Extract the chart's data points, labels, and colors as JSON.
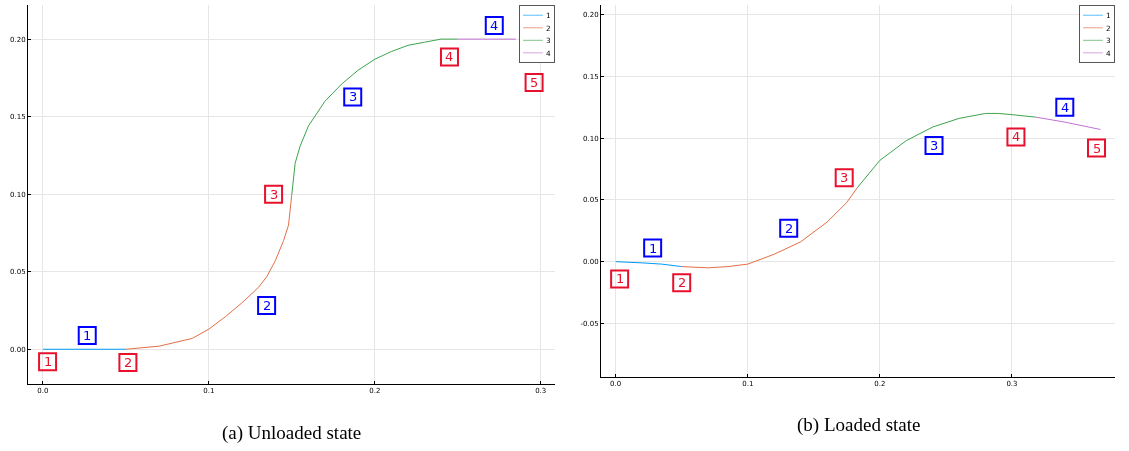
{
  "chart_data": [
    {
      "type": "line",
      "annotations": [
        "(a) Unloaded state",
        {
          "text": "1",
          "x": 0.0028,
          "y": -0.008
        },
        {
          "text": "2",
          "x": 0.0512,
          "y": -0.0085
        },
        {
          "text": "3",
          "x": 0.139,
          "y": 0.1
        },
        {
          "text": "4",
          "x": 0.245,
          "y": 0.1885
        },
        {
          "text": "5",
          "x": 0.296,
          "y": 0.172
        },
        {
          "text": "1",
          "x": 0.0267,
          "y": 0.0088
        },
        {
          "text": "2",
          "x": 0.1348,
          "y": 0.0283
        },
        {
          "text": "3",
          "x": 0.1867,
          "y": 0.1627
        },
        {
          "text": "4",
          "x": 0.272,
          "y": 0.2088
        }
      ],
      "xlim": [
        -0.009,
        0.3086
      ],
      "ylim": [
        -0.0224,
        0.222
      ],
      "xticks": [
        {
          "value": 0,
          "label": "0.0"
        },
        {
          "value": 0.1,
          "label": "0.1"
        },
        {
          "value": 0.2,
          "label": "0.2"
        },
        {
          "value": 0.3,
          "label": "0.3"
        }
      ],
      "yticks": [
        {
          "value": 0,
          "label": "0.00"
        },
        {
          "value": 0.05,
          "label": "0.05"
        },
        {
          "value": 0.1,
          "label": "0.10"
        },
        {
          "value": 0.15,
          "label": "0.15"
        },
        {
          "value": 0.2,
          "label": "0.20"
        }
      ],
      "grid": true,
      "legend": "top right",
      "series": [
        {
          "name": "1",
          "color": "#009af9",
          "x": [
            0,
            0.05
          ],
          "values": [
            0,
            0
          ]
        },
        {
          "name": "2",
          "color": "#e26f46",
          "x": [
            0.05,
            0.07,
            0.09,
            0.1,
            0.11,
            0.12,
            0.13,
            0.135,
            0.14,
            0.145,
            0.148,
            0.15
          ],
          "values": [
            0,
            0.002,
            0.007,
            0.013,
            0.021,
            0.03,
            0.04,
            0.047,
            0.057,
            0.07,
            0.08,
            0.1
          ]
        },
        {
          "name": "3",
          "color": "#3da44d",
          "x": [
            0.15,
            0.152,
            0.155,
            0.16,
            0.17,
            0.18,
            0.19,
            0.2,
            0.21,
            0.22,
            0.23,
            0.24,
            0.25
          ],
          "values": [
            0.1,
            0.12,
            0.131,
            0.144,
            0.16,
            0.171,
            0.18,
            0.187,
            0.192,
            0.196,
            0.198,
            0.2,
            0.2
          ]
        },
        {
          "name": "4",
          "color": "#c271d2",
          "x": [
            0.25,
            0.285
          ],
          "values": [
            0.2,
            0.2
          ]
        },
        {
          "type": "scatter",
          "marker": "square",
          "color": "#e8112d",
          "x": [
            0.0028,
            0.0512,
            0.139,
            0.245,
            0.296
          ],
          "values": [
            -0.008,
            -0.0085,
            0.1,
            0.1885,
            0.172
          ]
        },
        {
          "type": "scatter",
          "marker": "square",
          "color": "#0000ff",
          "x": [
            0.0267,
            0.1348,
            0.1867,
            0.272
          ],
          "values": [
            0.0088,
            0.0283,
            0.1627,
            0.2088
          ]
        }
      ]
    },
    {
      "type": "line",
      "annotations": [
        "(b) Loaded state",
        {
          "text": "1",
          "x": 0.003,
          "y": -0.014
        },
        {
          "text": "2",
          "x": 0.05,
          "y": -0.017
        },
        {
          "text": "3",
          "x": 0.173,
          "y": 0.068
        },
        {
          "text": "4",
          "x": 0.303,
          "y": 0.101
        },
        {
          "text": "5",
          "x": 0.364,
          "y": 0.092
        },
        {
          "text": "1",
          "x": 0.028,
          "y": 0.011
        },
        {
          "text": "2",
          "x": 0.131,
          "y": 0.027
        },
        {
          "text": "3",
          "x": 0.241,
          "y": 0.094
        },
        {
          "text": "4",
          "x": 0.34,
          "y": 0.125
        }
      ],
      "xlim": [
        -0.0111,
        0.378
      ],
      "ylim": [
        -0.0934,
        0.2078
      ],
      "xticks": [
        {
          "value": 0,
          "label": "0.0"
        },
        {
          "value": 0.1,
          "label": "0.1"
        },
        {
          "value": 0.2,
          "label": "0.2"
        },
        {
          "value": 0.3,
          "label": "0.3"
        }
      ],
      "yticks": [
        {
          "value": -0.05,
          "label": "-0.05"
        },
        {
          "value": 0,
          "label": "0.00"
        },
        {
          "value": 0.05,
          "label": "0.05"
        },
        {
          "value": 0.1,
          "label": "0.10"
        },
        {
          "value": 0.15,
          "label": "0.15"
        },
        {
          "value": 0.2,
          "label": "0.20"
        }
      ],
      "grid": true,
      "legend": "top right",
      "series": [
        {
          "name": "1",
          "color": "#009af9",
          "x": [
            0,
            0.02,
            0.035,
            0.05
          ],
          "values": [
            0,
            -0.001,
            -0.002,
            -0.004
          ]
        },
        {
          "name": "2",
          "color": "#e26f46",
          "x": [
            0.05,
            0.07,
            0.085,
            0.1,
            0.12,
            0.14,
            0.16,
            0.175,
            0.183
          ],
          "values": [
            -0.004,
            -0.005,
            -0.004,
            -0.002,
            0.006,
            0.016,
            0.032,
            0.048,
            0.06
          ]
        },
        {
          "name": "3",
          "color": "#3da44d",
          "x": [
            0.183,
            0.2,
            0.22,
            0.24,
            0.26,
            0.28,
            0.29,
            0.3,
            0.318
          ],
          "values": [
            0.06,
            0.082,
            0.098,
            0.109,
            0.116,
            0.12,
            0.12,
            0.119,
            0.117
          ]
        },
        {
          "name": "4",
          "color": "#c271d2",
          "x": [
            0.318,
            0.34,
            0.367
          ],
          "values": [
            0.117,
            0.113,
            0.107
          ]
        },
        {
          "type": "scatter",
          "marker": "square",
          "color": "#e8112d",
          "x": [
            0.003,
            0.05,
            0.173,
            0.303,
            0.364
          ],
          "values": [
            -0.014,
            -0.017,
            0.068,
            0.101,
            0.092
          ]
        },
        {
          "type": "scatter",
          "marker": "square",
          "color": "#0000ff",
          "x": [
            0.028,
            0.131,
            0.241,
            0.34
          ],
          "values": [
            0.011,
            0.027,
            0.094,
            0.125
          ]
        }
      ]
    }
  ]
}
